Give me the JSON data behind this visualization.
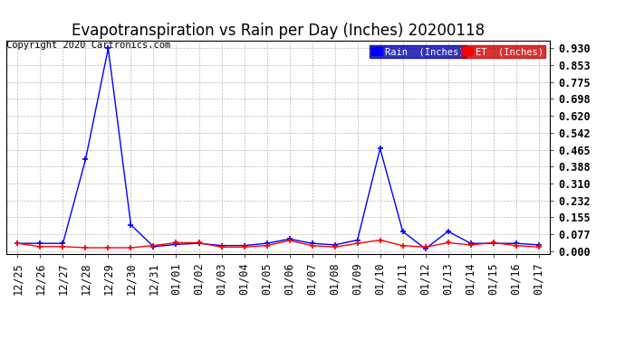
{
  "title": "Evapotranspiration vs Rain per Day (Inches) 20200118",
  "copyright": "Copyright 2020 Cartronics.com",
  "x_labels": [
    "12/25",
    "12/26",
    "12/27",
    "12/28",
    "12/29",
    "12/30",
    "12/31",
    "01/01",
    "01/02",
    "01/03",
    "01/04",
    "01/05",
    "01/06",
    "01/07",
    "01/08",
    "01/09",
    "01/10",
    "01/11",
    "01/12",
    "01/13",
    "01/14",
    "01/15",
    "01/16",
    "01/17"
  ],
  "rain_values": [
    0.035,
    0.035,
    0.035,
    0.42,
    0.93,
    0.12,
    0.02,
    0.03,
    0.035,
    0.025,
    0.025,
    0.035,
    0.055,
    0.035,
    0.028,
    0.05,
    0.47,
    0.09,
    0.01,
    0.09,
    0.035,
    0.035,
    0.035,
    0.028
  ],
  "et_values": [
    0.035,
    0.02,
    0.02,
    0.015,
    0.015,
    0.015,
    0.025,
    0.038,
    0.038,
    0.018,
    0.018,
    0.025,
    0.048,
    0.025,
    0.018,
    0.035,
    0.05,
    0.025,
    0.018,
    0.038,
    0.028,
    0.038,
    0.025,
    0.018
  ],
  "rain_color": "#0000ff",
  "et_color": "#ff0000",
  "background_color": "#ffffff",
  "grid_color": "#bbbbbb",
  "yticks": [
    0.0,
    0.077,
    0.155,
    0.232,
    0.31,
    0.388,
    0.465,
    0.542,
    0.62,
    0.698,
    0.775,
    0.853,
    0.93
  ],
  "ylim": [
    -0.015,
    0.965
  ],
  "legend_rain_label": "Rain  (Inches)",
  "title_fontsize": 12,
  "tick_fontsize": 8.5,
  "copyright_fontsize": 7.5
}
